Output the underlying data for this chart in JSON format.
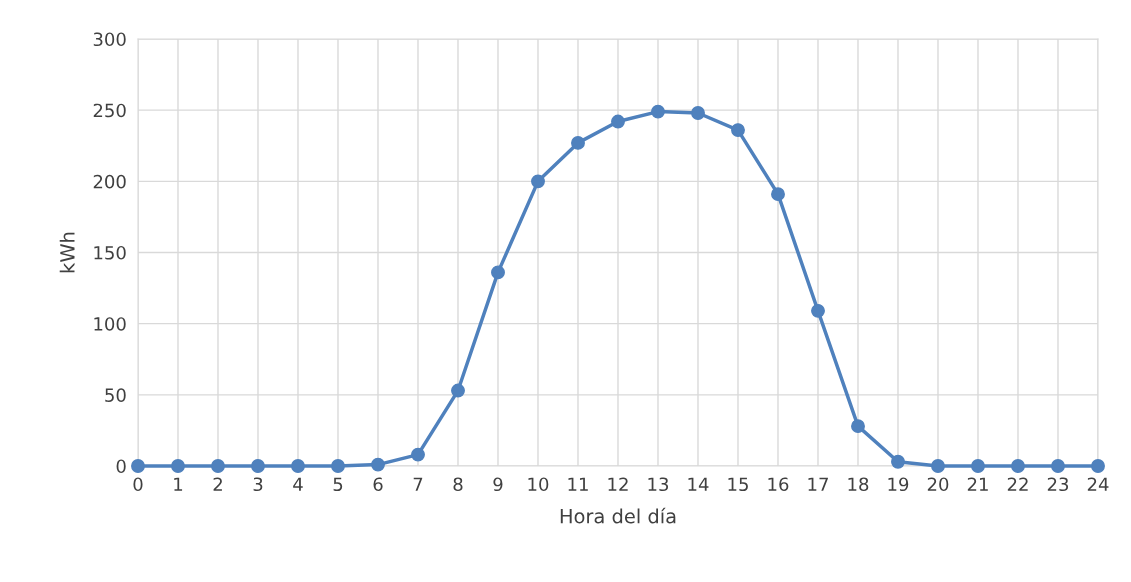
{
  "chart_data": {
    "type": "line",
    "xlabel": "Hora del día",
    "ylabel": "kWh",
    "x": [
      0,
      1,
      2,
      3,
      4,
      5,
      6,
      7,
      8,
      9,
      10,
      11,
      12,
      13,
      14,
      15,
      16,
      17,
      18,
      19,
      20,
      21,
      22,
      23,
      24
    ],
    "series": [
      {
        "color": "#4f81bd",
        "values": [
          0,
          0,
          0,
          0,
          0,
          0,
          1,
          8,
          53,
          136,
          200,
          227,
          242,
          249,
          248,
          236,
          191,
          109,
          28,
          3,
          0,
          0,
          0,
          0,
          0
        ]
      }
    ],
    "xlim": [
      0,
      24
    ],
    "xticks": [
      0,
      1,
      2,
      3,
      4,
      5,
      6,
      7,
      8,
      9,
      10,
      11,
      12,
      13,
      14,
      15,
      16,
      17,
      18,
      19,
      20,
      21,
      22,
      23,
      24
    ],
    "ylim": [
      0,
      300
    ],
    "yticks": [
      0,
      50,
      100,
      150,
      200,
      250,
      300
    ],
    "grid": true,
    "marker": "circle",
    "line_style": "solid"
  }
}
